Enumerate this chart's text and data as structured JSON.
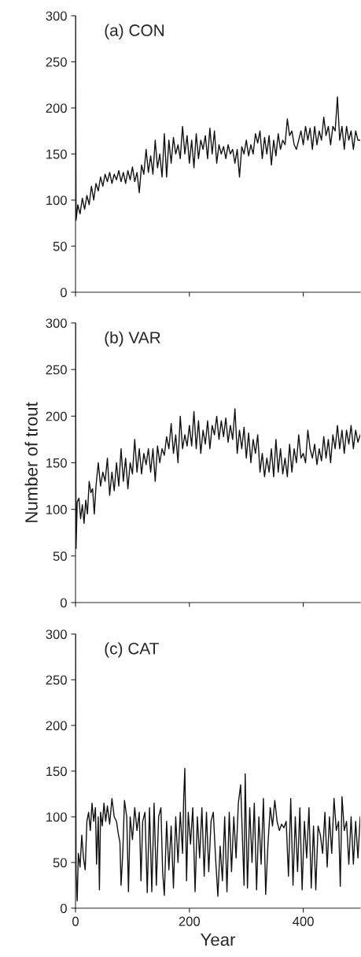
{
  "chart_data": [
    {
      "type": "line",
      "title": "(a) CON",
      "xlim": [
        0,
        500
      ],
      "ylim": [
        0,
        300
      ],
      "xticks": [
        {
          "value": 0,
          "label": null
        },
        {
          "value": 200,
          "label": null
        },
        {
          "value": 400,
          "label": null
        }
      ],
      "yticks": [
        0,
        50,
        100,
        150,
        200,
        250,
        300
      ],
      "tick_labels": "y",
      "grid": false,
      "legend": false,
      "series": [
        {
          "color": "#111111",
          "x": [
            0,
            1,
            4,
            8,
            12,
            16,
            20,
            24,
            28,
            32,
            36,
            40,
            44,
            48,
            52,
            56,
            60,
            64,
            68,
            72,
            76,
            80,
            84,
            88,
            92,
            96,
            100,
            104,
            108,
            112,
            116,
            120,
            124,
            128,
            132,
            136,
            140,
            144,
            148,
            152,
            156,
            160,
            164,
            168,
            172,
            176,
            180,
            184,
            188,
            192,
            196,
            200,
            204,
            208,
            212,
            216,
            220,
            224,
            228,
            232,
            236,
            240,
            244,
            248,
            252,
            256,
            260,
            264,
            268,
            272,
            276,
            280,
            284,
            288,
            292,
            296,
            300,
            304,
            308,
            312,
            316,
            320,
            324,
            328,
            332,
            336,
            340,
            344,
            348,
            352,
            356,
            360,
            364,
            368,
            372,
            376,
            380,
            384,
            388,
            392,
            396,
            400,
            404,
            408,
            412,
            416,
            420,
            424,
            428,
            432,
            436,
            440,
            444,
            448,
            452,
            456,
            460,
            464,
            468,
            472,
            476,
            480,
            484,
            488,
            492,
            496,
            500
          ],
          "values": [
            300,
            78,
            95,
            85,
            102,
            90,
            105,
            95,
            115,
            100,
            118,
            110,
            125,
            115,
            128,
            120,
            130,
            118,
            128,
            122,
            132,
            120,
            130,
            118,
            132,
            122,
            136,
            120,
            130,
            108,
            138,
            128,
            155,
            130,
            148,
            128,
            165,
            135,
            150,
            125,
            172,
            125,
            165,
            140,
            168,
            150,
            160,
            145,
            180,
            150,
            170,
            140,
            165,
            135,
            172,
            145,
            165,
            155,
            170,
            145,
            178,
            150,
            175,
            140,
            160,
            150,
            158,
            145,
            160,
            150,
            155,
            140,
            155,
            125,
            158,
            150,
            165,
            148,
            160,
            150,
            172,
            162,
            175,
            145,
            168,
            150,
            170,
            138,
            165,
            148,
            172,
            155,
            165,
            160,
            188,
            170,
            175,
            160,
            155,
            165,
            175,
            160,
            180,
            165,
            178,
            155,
            180,
            160,
            175,
            165,
            190,
            170,
            180,
            160,
            180,
            175,
            212,
            165,
            180,
            155,
            180,
            165,
            175,
            155,
            175,
            165,
            165
          ]
        }
      ]
    },
    {
      "type": "line",
      "title": "(b) VAR",
      "ylabel": "Number of trout",
      "xlim": [
        0,
        500
      ],
      "ylim": [
        0,
        300
      ],
      "xticks": [
        {
          "value": 0,
          "label": null
        },
        {
          "value": 200,
          "label": null
        },
        {
          "value": 400,
          "label": null
        }
      ],
      "yticks": [
        0,
        50,
        100,
        150,
        200,
        250,
        300
      ],
      "tick_labels": "y",
      "grid": false,
      "legend": false,
      "series": [
        {
          "color": "#111111",
          "x": [
            0,
            1,
            3,
            6,
            9,
            12,
            15,
            18,
            21,
            24,
            27,
            30,
            33,
            36,
            40,
            44,
            48,
            52,
            56,
            60,
            64,
            68,
            72,
            76,
            80,
            84,
            88,
            92,
            96,
            100,
            104,
            108,
            112,
            116,
            120,
            124,
            128,
            132,
            136,
            140,
            144,
            148,
            152,
            156,
            160,
            164,
            168,
            172,
            176,
            180,
            184,
            188,
            192,
            196,
            200,
            204,
            208,
            212,
            216,
            220,
            224,
            228,
            232,
            236,
            240,
            244,
            248,
            252,
            256,
            260,
            264,
            268,
            272,
            276,
            280,
            284,
            288,
            292,
            296,
            300,
            304,
            308,
            312,
            316,
            320,
            324,
            328,
            332,
            336,
            340,
            344,
            348,
            352,
            356,
            360,
            364,
            368,
            372,
            376,
            380,
            384,
            388,
            392,
            396,
            400,
            404,
            408,
            412,
            416,
            420,
            424,
            428,
            432,
            436,
            440,
            444,
            448,
            452,
            456,
            460,
            464,
            468,
            472,
            476,
            480,
            484,
            488,
            492,
            496,
            500
          ],
          "values": [
            300,
            58,
            108,
            112,
            90,
            105,
            85,
            110,
            95,
            130,
            118,
            122,
            95,
            125,
            150,
            125,
            140,
            130,
            155,
            115,
            140,
            120,
            150,
            125,
            165,
            130,
            155,
            122,
            150,
            138,
            175,
            140,
            165,
            138,
            160,
            148,
            165,
            140,
            165,
            130,
            168,
            150,
            165,
            158,
            178,
            165,
            192,
            160,
            180,
            150,
            200,
            165,
            180,
            168,
            190,
            168,
            205,
            165,
            195,
            160,
            185,
            170,
            195,
            165,
            190,
            180,
            200,
            175,
            195,
            178,
            198,
            172,
            190,
            175,
            208,
            160,
            185,
            165,
            188,
            155,
            182,
            150,
            175,
            160,
            180,
            140,
            160,
            135,
            155,
            140,
            165,
            135,
            175,
            140,
            165,
            138,
            155,
            135,
            170,
            140,
            165,
            150,
            180,
            155,
            160,
            150,
            185,
            165,
            155,
            170,
            148,
            165,
            152,
            178,
            155,
            175,
            150,
            180,
            165,
            190,
            165,
            185,
            160,
            185,
            170,
            190,
            165,
            185,
            172,
            180
          ]
        }
      ]
    },
    {
      "type": "line",
      "title": "(c) CAT",
      "xlabel": "Year",
      "xlim": [
        0,
        500
      ],
      "ylim": [
        0,
        300
      ],
      "xticks": [
        0,
        200,
        400
      ],
      "yticks": [
        0,
        50,
        100,
        150,
        200,
        250,
        300
      ],
      "grid": false,
      "legend": false,
      "series": [
        {
          "color": "#111111",
          "x": [
            0,
            1,
            3,
            5,
            8,
            11,
            14,
            17,
            20,
            23,
            26,
            29,
            32,
            35,
            37,
            40,
            42,
            44,
            47,
            50,
            53,
            56,
            60,
            64,
            68,
            72,
            75,
            78,
            80,
            83,
            86,
            90,
            93,
            96,
            100,
            104,
            108,
            112,
            115,
            118,
            122,
            126,
            130,
            134,
            138,
            142,
            146,
            150,
            153,
            156,
            160,
            164,
            168,
            172,
            176,
            180,
            184,
            188,
            190,
            192,
            195,
            198,
            202,
            206,
            210,
            214,
            218,
            222,
            226,
            230,
            234,
            238,
            242,
            246,
            250,
            254,
            258,
            262,
            266,
            270,
            274,
            278,
            282,
            286,
            290,
            293,
            296,
            298,
            302,
            306,
            310,
            314,
            318,
            322,
            326,
            330,
            334,
            338,
            342,
            346,
            350,
            354,
            358,
            362,
            366,
            370,
            374,
            378,
            382,
            386,
            390,
            394,
            398,
            402,
            406,
            410,
            414,
            418,
            422,
            426,
            430,
            434,
            438,
            442,
            446,
            450,
            454,
            458,
            462,
            465,
            468,
            472,
            476,
            480,
            484,
            488,
            492,
            496,
            500
          ],
          "values": [
            300,
            40,
            8,
            60,
            45,
            80,
            55,
            42,
            95,
            105,
            85,
            115,
            95,
            110,
            48,
            100,
            20,
            105,
            90,
            115,
            95,
            112,
            92,
            120,
            100,
            95,
            82,
            72,
            25,
            60,
            118,
            100,
            18,
            100,
            75,
            110,
            85,
            105,
            30,
            95,
            105,
            17,
            110,
            18,
            115,
            25,
            100,
            110,
            40,
            14,
            95,
            42,
            90,
            22,
            100,
            50,
            105,
            60,
            120,
            153,
            30,
            105,
            70,
            110,
            18,
            100,
            55,
            110,
            35,
            105,
            40,
            95,
            105,
            55,
            13,
            68,
            30,
            100,
            18,
            105,
            40,
            100,
            55,
            115,
            135,
            80,
            25,
            147,
            22,
            110,
            50,
            115,
            20,
            100,
            48,
            120,
            15,
            70,
            110,
            90,
            118,
            95,
            85,
            92,
            88,
            95,
            35,
            120,
            25,
            100,
            40,
            110,
            20,
            95,
            55,
            110,
            22,
            90,
            20,
            90,
            80,
            60,
            105,
            45,
            100,
            60,
            120,
            85,
            95,
            24,
            122,
            85,
            95,
            48,
            100,
            48,
            95,
            55,
            100
          ]
        }
      ]
    }
  ]
}
